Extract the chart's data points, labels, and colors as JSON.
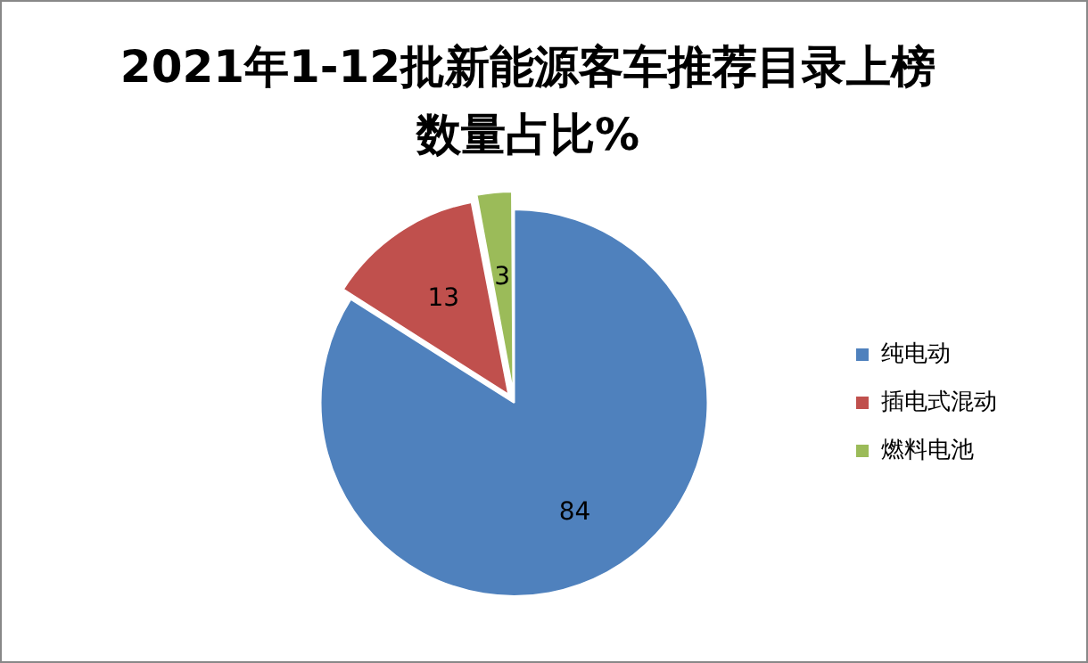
{
  "chart_data": {
    "type": "pie",
    "title": "2021年1-12批新能源客车推荐目录上榜数量占比%",
    "categories": [
      "纯电动",
      "插电式混动",
      "燃料电池"
    ],
    "values": [
      84,
      13,
      3
    ],
    "colors": [
      "#4f81bd",
      "#c0504d",
      "#9bbb59"
    ],
    "data_labels": true,
    "legend": "right"
  }
}
